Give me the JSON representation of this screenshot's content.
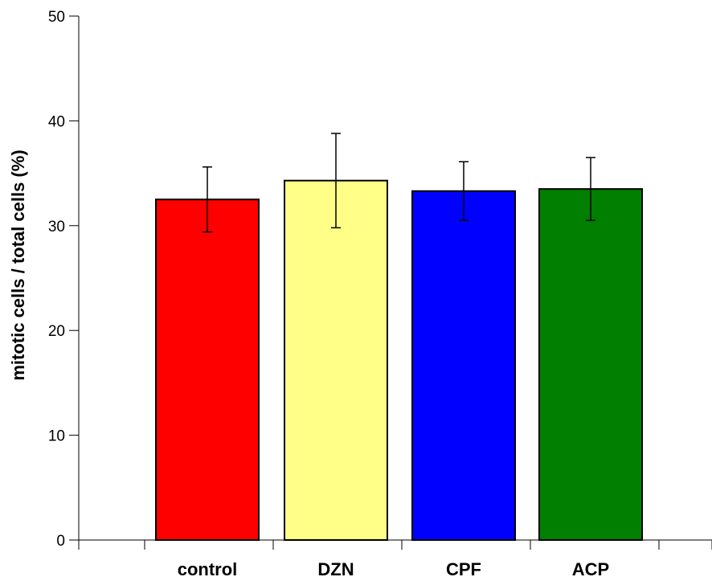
{
  "chart_data": {
    "type": "bar",
    "title": "",
    "xlabel": "",
    "ylabel": "mitotic cells / total cells (%)",
    "ylim": [
      0,
      50
    ],
    "yticks": [
      0,
      10,
      20,
      30,
      40,
      50
    ],
    "grid": false,
    "categories": [
      "control",
      "DZN",
      "CPF",
      "ACP"
    ],
    "values": [
      32.5,
      34.3,
      33.3,
      33.5
    ],
    "errors": [
      3.1,
      4.5,
      2.8,
      3.0
    ],
    "colors": [
      "#ff0000",
      "#ffff88",
      "#0000ff",
      "#007f00"
    ]
  }
}
